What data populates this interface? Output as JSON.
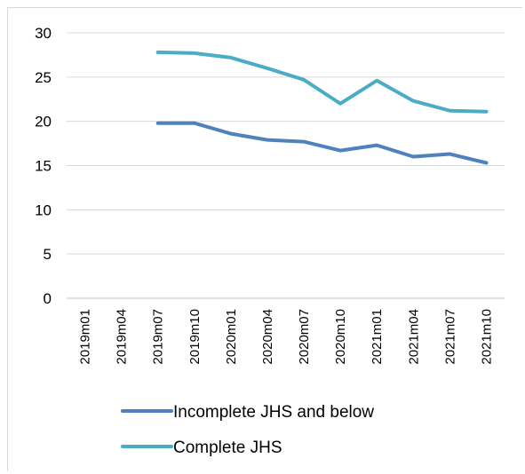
{
  "chart_data": {
    "type": "line",
    "title": "",
    "xlabel": "",
    "ylabel": "",
    "categories": [
      "2019m01",
      "2019m04",
      "2019m07",
      "2019m10",
      "2020m01",
      "2020m04",
      "2020m07",
      "2020m10",
      "2021m01",
      "2021m04",
      "2021m07",
      "2021m10"
    ],
    "ylim": [
      0,
      30
    ],
    "yticks": [
      0,
      5,
      10,
      15,
      20,
      25,
      30
    ],
    "grid": true,
    "legend_position": "bottom",
    "series": [
      {
        "name": "Incomplete JHS and below",
        "color": "#4f81bd",
        "values": [
          null,
          null,
          19.8,
          19.8,
          18.6,
          17.9,
          17.7,
          16.7,
          17.3,
          16.0,
          16.3,
          15.3
        ]
      },
      {
        "name": "Complete JHS",
        "color": "#4bacc6",
        "values": [
          null,
          null,
          27.8,
          27.7,
          27.2,
          26.0,
          24.7,
          22.0,
          24.6,
          22.3,
          21.2,
          21.1
        ]
      }
    ]
  }
}
